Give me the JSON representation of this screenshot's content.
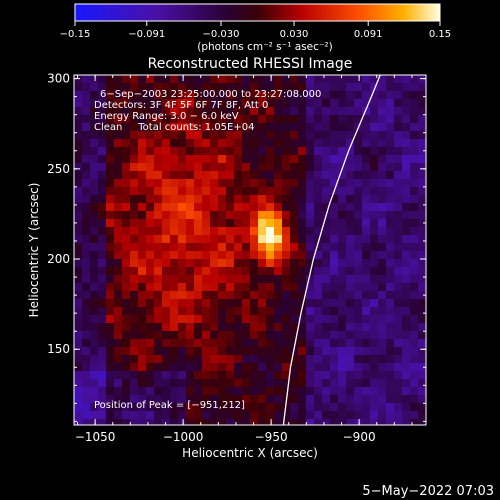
{
  "chart_data": {
    "type": "heatmap",
    "title": "Reconstructed RHESSI Image",
    "xlabel": "Heliocentric X (arcsec)",
    "ylabel": "Heliocentric Y (arcsec)",
    "xlim": [
      -1062,
      -862
    ],
    "ylim": [
      108,
      302
    ],
    "x_ticks": [
      -1050,
      -1000,
      -950,
      -900
    ],
    "x_tick_labels": [
      "−1050",
      "−1000",
      "−950",
      "−900"
    ],
    "y_ticks": [
      150,
      200,
      250,
      300
    ],
    "y_tick_labels": [
      "150",
      "200",
      "250",
      "300"
    ],
    "colorbar": {
      "min": -0.15,
      "max": 0.15,
      "ticks": [
        -0.15,
        -0.091,
        -0.03,
        0.03,
        0.091,
        0.15
      ],
      "tick_labels": [
        "−0.15",
        "−0.091",
        "−0.030",
        "0.030",
        "0.091",
        "0.15"
      ],
      "unit_label": "(photons cm⁻² s⁻¹ asec⁻²)"
    },
    "annotations": [
      "6−Sep−2003 23:25:00.000 to 23:27:08.000",
      "Detectors: 3F 4F 5F 6F 7F 8F, Att 0",
      "Energy Range: 3.0 − 6.0 keV",
      "Clean     Total counts: 1.05E+04"
    ],
    "peak_label": "Position of Peak = [−951,212]",
    "peak": [
      -951,
      212
    ],
    "limb_curve": [
      [
        -943,
        108
      ],
      [
        -939,
        140
      ],
      [
        -933,
        170
      ],
      [
        -926,
        200
      ],
      [
        -917,
        230
      ],
      [
        -906,
        260
      ],
      [
        -893,
        290
      ],
      [
        -888,
        302
      ]
    ]
  },
  "footer": {
    "timestamp": "5−May−2022 07:03"
  }
}
